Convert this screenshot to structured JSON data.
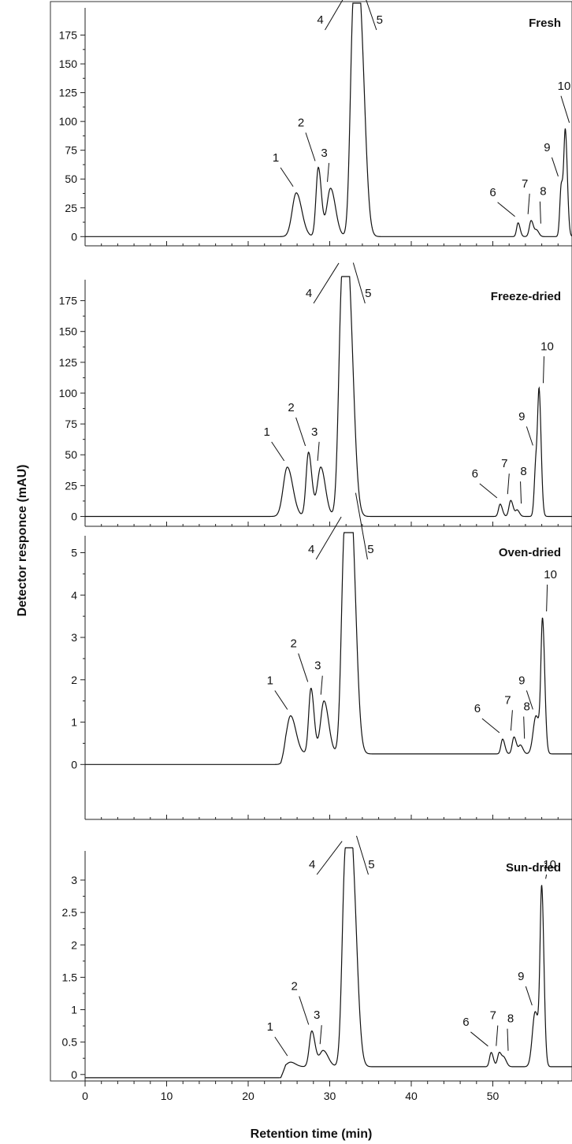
{
  "chart_data": {
    "type": "line",
    "xlabel": "Retention time (min)",
    "ylabel": "Detector responce (mAU)",
    "xlim": [
      0,
      60
    ],
    "x_ticks": [
      "0",
      "10",
      "20",
      "30",
      "40",
      "50"
    ],
    "grid": false,
    "panels": [
      {
        "name": "Fresh",
        "ylim": [
          -8,
          200
        ],
        "y_ticks": [
          "0",
          "25",
          "50",
          "75",
          "100",
          "125",
          "150",
          "175"
        ],
        "baseline": 0,
        "peaks": [
          {
            "id": "1",
            "rt": 25.9,
            "height": 38,
            "width": 0.5
          },
          {
            "id": "2",
            "rt": 28.6,
            "height": 60,
            "width": 0.28
          },
          {
            "id": "3",
            "rt": 30.1,
            "height": 42,
            "width": 0.45
          },
          {
            "id": "4",
            "rt": 32.9,
            "height": 195,
            "width": 0.38
          },
          {
            "id": "5",
            "rt": 33.8,
            "height": 162,
            "width": 0.42
          },
          {
            "id": "6",
            "rt": 53.1,
            "height": 12,
            "width": 0.18
          },
          {
            "id": "7",
            "rt": 54.7,
            "height": 14,
            "width": 0.22
          },
          {
            "id": "8",
            "rt": 55.4,
            "height": 5,
            "width": 0.2
          },
          {
            "id": "9",
            "rt": 58.4,
            "height": 45,
            "width": 0.18
          },
          {
            "id": "10",
            "rt": 58.9,
            "height": 88,
            "width": 0.18
          }
        ]
      },
      {
        "name": "Freeze-dried",
        "ylim": [
          -8,
          192
        ],
        "y_ticks": [
          "0",
          "25",
          "50",
          "75",
          "100",
          "125",
          "150",
          "175"
        ],
        "baseline": 0,
        "peaks": [
          {
            "id": "1",
            "rt": 24.8,
            "height": 40,
            "width": 0.5
          },
          {
            "id": "2",
            "rt": 27.4,
            "height": 52,
            "width": 0.3
          },
          {
            "id": "3",
            "rt": 28.9,
            "height": 40,
            "width": 0.42
          },
          {
            "id": "4",
            "rt": 31.5,
            "height": 183,
            "width": 0.4
          },
          {
            "id": "5",
            "rt": 32.4,
            "height": 155,
            "width": 0.43
          },
          {
            "id": "6",
            "rt": 50.9,
            "height": 10,
            "width": 0.2
          },
          {
            "id": "7",
            "rt": 52.2,
            "height": 13,
            "width": 0.22
          },
          {
            "id": "8",
            "rt": 53.0,
            "height": 5,
            "width": 0.2
          },
          {
            "id": "9",
            "rt": 55.3,
            "height": 45,
            "width": 0.2
          },
          {
            "id": "10",
            "rt": 55.7,
            "height": 88,
            "width": 0.18
          }
        ]
      },
      {
        "name": "Oven-dried",
        "ylim": [
          -0.85,
          5.4
        ],
        "y_ticks": [
          "0",
          "1",
          "2",
          "3",
          "4",
          "5"
        ],
        "baseline": 0,
        "step": {
          "start": 24.0,
          "end": 33.5,
          "level": 0.25
        },
        "peaks": [
          {
            "id": "1",
            "rt": 25.2,
            "height": 0.9,
            "width": 0.48
          },
          {
            "id": "2",
            "rt": 27.7,
            "height": 1.55,
            "width": 0.28
          },
          {
            "id": "3",
            "rt": 29.3,
            "height": 1.25,
            "width": 0.42
          },
          {
            "id": "4",
            "rt": 31.8,
            "height": 4.95,
            "width": 0.38
          },
          {
            "id": "5",
            "rt": 32.7,
            "height": 4.95,
            "width": 0.42
          },
          {
            "id": "6",
            "rt": 51.2,
            "height": 0.35,
            "width": 0.2
          },
          {
            "id": "7",
            "rt": 52.6,
            "height": 0.4,
            "width": 0.22
          },
          {
            "id": "8",
            "rt": 53.4,
            "height": 0.2,
            "width": 0.22
          },
          {
            "id": "9",
            "rt": 55.3,
            "height": 0.9,
            "width": 0.35
          },
          {
            "id": "10",
            "rt": 56.1,
            "height": 3.0,
            "width": 0.2
          }
        ]
      },
      {
        "name": "Sun-dried",
        "ylim": [
          -0.1,
          3.45
        ],
        "y_ticks": [
          "0",
          "0.5",
          "1",
          "1.5",
          "2",
          "2.5",
          "3"
        ],
        "baseline": -0.05,
        "step": {
          "start": 24.0,
          "end": 33.5,
          "level": 0.17
        },
        "peaks": [
          {
            "id": "1",
            "rt": 25.2,
            "height": 0.07,
            "width": 0.45
          },
          {
            "id": "2",
            "rt": 27.8,
            "height": 0.55,
            "width": 0.3
          },
          {
            "id": "3",
            "rt": 29.2,
            "height": 0.25,
            "width": 0.45
          },
          {
            "id": "4",
            "rt": 31.9,
            "height": 3.1,
            "width": 0.38
          },
          {
            "id": "5",
            "rt": 32.8,
            "height": 2.8,
            "width": 0.42
          },
          {
            "id": "6",
            "rt": 49.8,
            "height": 0.22,
            "width": 0.2
          },
          {
            "id": "7",
            "rt": 50.8,
            "height": 0.22,
            "width": 0.22
          },
          {
            "id": "8",
            "rt": 51.4,
            "height": 0.12,
            "width": 0.22
          },
          {
            "id": "9",
            "rt": 55.2,
            "height": 0.85,
            "width": 0.35
          },
          {
            "id": "10",
            "rt": 56.0,
            "height": 2.6,
            "width": 0.2
          }
        ]
      }
    ]
  }
}
